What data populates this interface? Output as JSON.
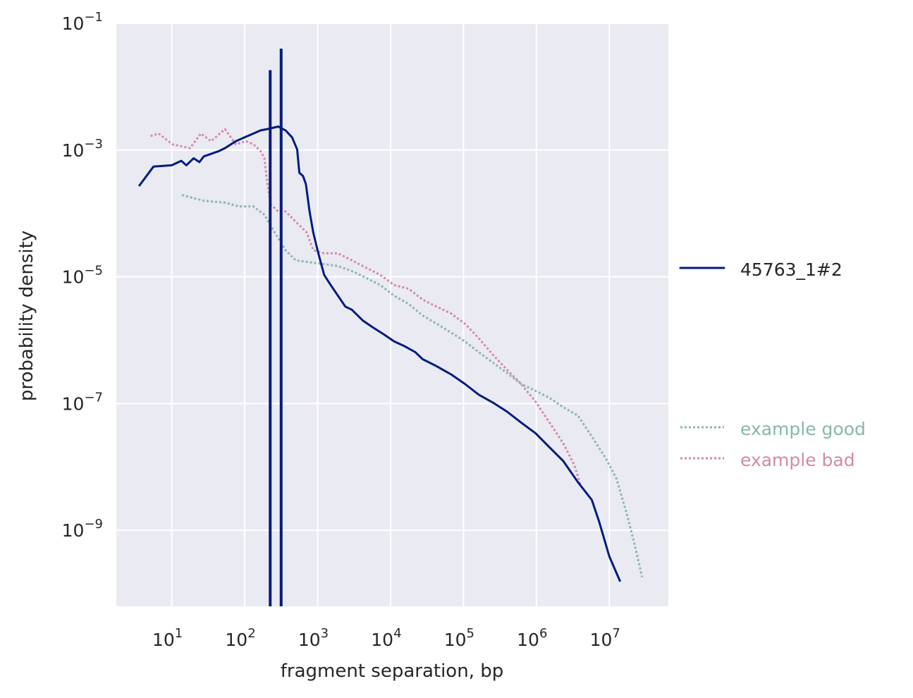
{
  "chart_data": {
    "type": "line",
    "xscale": "log",
    "yscale": "log",
    "xlabel": "fragment separation, bp",
    "ylabel": "probability density",
    "xlim_log10": [
      0.24,
      7.81
    ],
    "ylim_log10": [
      -10.2,
      -1
    ],
    "xticks": [
      {
        "base": "10",
        "exp": "1"
      },
      {
        "base": "10",
        "exp": "2"
      },
      {
        "base": "10",
        "exp": "3"
      },
      {
        "base": "10",
        "exp": "4"
      },
      {
        "base": "10",
        "exp": "5"
      },
      {
        "base": "10",
        "exp": "6"
      },
      {
        "base": "10",
        "exp": "7"
      }
    ],
    "yticks": [
      {
        "base": "10",
        "exp": "−1"
      },
      {
        "base": "10",
        "exp": "−3"
      },
      {
        "base": "10",
        "exp": "−5"
      },
      {
        "base": "10",
        "exp": "−7"
      },
      {
        "base": "10",
        "exp": "−9"
      }
    ],
    "grid": true,
    "background": "#eaeaf2",
    "legend": {
      "placement": "right"
    },
    "series": [
      {
        "name": "45763_1#2",
        "color": "#001c7f",
        "style": "solid",
        "log10_x": [
          0.55,
          0.75,
          1.0,
          1.13,
          1.2,
          1.3,
          1.38,
          1.44,
          1.54,
          1.64,
          1.73,
          1.88,
          2.0,
          2.12,
          2.22,
          2.31,
          2.46,
          2.56,
          2.65,
          2.72,
          2.75,
          2.8,
          2.84,
          2.89,
          2.94,
          3.01,
          3.09,
          3.18,
          3.28,
          3.38,
          3.47,
          3.62,
          3.76,
          3.91,
          4.05,
          4.2,
          4.34,
          4.44,
          4.63,
          4.83,
          5.02,
          5.21,
          5.41,
          5.6,
          5.79,
          5.99,
          6.18,
          6.37,
          6.57,
          6.76,
          6.86,
          7.0,
          7.15
        ],
        "log10_y": [
          -3.57,
          -3.26,
          -3.24,
          -3.17,
          -3.24,
          -3.13,
          -3.19,
          -3.1,
          -3.06,
          -3.02,
          -2.97,
          -2.86,
          -2.8,
          -2.74,
          -2.69,
          -2.67,
          -2.63,
          -2.69,
          -2.8,
          -2.99,
          -3.36,
          -3.41,
          -3.54,
          -3.97,
          -4.3,
          -4.63,
          -4.97,
          -5.13,
          -5.3,
          -5.47,
          -5.52,
          -5.69,
          -5.8,
          -5.91,
          -6.02,
          -6.1,
          -6.19,
          -6.3,
          -6.41,
          -6.54,
          -6.69,
          -6.86,
          -6.99,
          -7.13,
          -7.3,
          -7.47,
          -7.69,
          -7.91,
          -8.24,
          -8.52,
          -8.86,
          -9.41,
          -9.81
        ],
        "spikes": [
          {
            "log10_x": 2.35,
            "log10_y_peak": -1.74
          },
          {
            "log10_x": 2.5,
            "log10_y_peak": -1.4
          }
        ]
      },
      {
        "name": "example good",
        "color": "#8ab6ae",
        "style": "dotted",
        "log10_x": [
          1.14,
          1.44,
          1.73,
          1.92,
          2.12,
          2.27,
          2.41,
          2.56,
          2.7,
          2.89,
          3.09,
          3.28,
          3.47,
          3.67,
          3.86,
          4.05,
          4.25,
          4.44,
          4.63,
          4.83,
          5.02,
          5.21,
          5.41,
          5.6,
          5.79,
          5.99,
          6.18,
          6.37,
          6.57,
          6.76,
          6.95,
          7.1,
          7.24,
          7.34,
          7.45
        ],
        "log10_y": [
          -3.71,
          -3.8,
          -3.83,
          -3.89,
          -3.89,
          -4.02,
          -4.3,
          -4.58,
          -4.74,
          -4.77,
          -4.8,
          -4.83,
          -4.91,
          -5.02,
          -5.13,
          -5.3,
          -5.43,
          -5.61,
          -5.74,
          -5.88,
          -6.02,
          -6.19,
          -6.36,
          -6.52,
          -6.69,
          -6.8,
          -6.91,
          -7.06,
          -7.19,
          -7.52,
          -7.86,
          -8.19,
          -8.74,
          -9.19,
          -9.74
        ]
      },
      {
        "name": "example bad",
        "color": "#d38aa6",
        "style": "dotted",
        "log10_x": [
          0.71,
          0.82,
          1.01,
          1.25,
          1.4,
          1.54,
          1.73,
          1.88,
          2.02,
          2.12,
          2.22,
          2.27,
          2.31,
          2.36,
          2.46,
          2.56,
          2.7,
          2.85,
          2.94,
          3.09,
          3.28,
          3.47,
          3.67,
          3.86,
          4.05,
          4.25,
          4.44,
          4.63,
          4.83,
          5.02,
          5.21,
          5.41,
          5.6,
          5.79,
          5.99,
          6.18,
          6.37,
          6.52,
          6.61
        ],
        "log10_y": [
          -2.78,
          -2.74,
          -2.91,
          -2.97,
          -2.74,
          -2.86,
          -2.67,
          -2.91,
          -2.86,
          -2.91,
          -3.02,
          -3.13,
          -3.52,
          -3.86,
          -3.97,
          -3.97,
          -4.13,
          -4.3,
          -4.58,
          -4.63,
          -4.63,
          -4.74,
          -4.86,
          -4.97,
          -5.13,
          -5.19,
          -5.36,
          -5.47,
          -5.58,
          -5.74,
          -5.97,
          -6.24,
          -6.47,
          -6.69,
          -6.97,
          -7.3,
          -7.63,
          -7.97,
          -8.3
        ]
      }
    ]
  }
}
